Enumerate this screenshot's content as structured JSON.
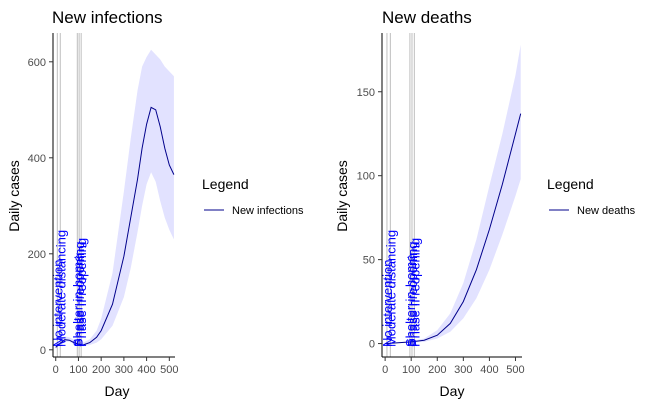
{
  "colors": {
    "line": "#00008b",
    "band": "#e2e2ff",
    "vline": "#bebebe",
    "annotation": "#0000ff",
    "axis": "#000000"
  },
  "chart_data": [
    {
      "type": "line",
      "title": "New infections",
      "xlabel": "Day",
      "ylabel": "Daily cases",
      "xlim": [
        -12,
        525
      ],
      "ylim": [
        -15,
        660
      ],
      "xticks": [
        0,
        100,
        200,
        300,
        400,
        500
      ],
      "yticks": [
        0,
        200,
        400,
        600
      ],
      "legend": {
        "title": "Legend",
        "entries": [
          "New infections"
        ],
        "position": "right"
      },
      "interventions": [
        {
          "day": 7,
          "label": "No intervention"
        },
        {
          "day": 20,
          "label": "Moderate distancing"
        },
        {
          "day": 95,
          "label": "Shelter-in-home"
        },
        {
          "day": 103,
          "label": "Phase I reopening"
        },
        {
          "day": 112,
          "label": "Phase II reopening"
        }
      ],
      "series": [
        {
          "name": "New infections",
          "x": [
            0,
            20,
            40,
            60,
            80,
            100,
            120,
            150,
            180,
            200,
            250,
            300,
            330,
            360,
            380,
            400,
            420,
            440,
            460,
            480,
            500,
            520
          ],
          "y": [
            5,
            14,
            21,
            20,
            15,
            12,
            10,
            15,
            26,
            40,
            95,
            195,
            275,
            355,
            420,
            470,
            505,
            500,
            465,
            420,
            385,
            365
          ],
          "lower": [
            2,
            10,
            17,
            17,
            12,
            9,
            7,
            10,
            15,
            22,
            50,
            110,
            170,
            245,
            300,
            345,
            370,
            350,
            310,
            275,
            250,
            230
          ],
          "upper": [
            8,
            20,
            28,
            26,
            21,
            17,
            15,
            22,
            40,
            65,
            160,
            330,
            440,
            540,
            590,
            610,
            625,
            615,
            605,
            590,
            580,
            570
          ]
        }
      ]
    },
    {
      "type": "line",
      "title": "New deaths",
      "xlabel": "Day",
      "ylabel": "Daily cases",
      "xlim": [
        -12,
        525
      ],
      "ylim": [
        -8,
        185
      ],
      "xticks": [
        0,
        100,
        200,
        300,
        400,
        500
      ],
      "yticks": [
        0,
        50,
        100,
        150
      ],
      "legend": {
        "title": "Legend",
        "entries": [
          "New deaths"
        ],
        "position": "right"
      },
      "interventions": [
        {
          "day": 7,
          "label": "No intervention"
        },
        {
          "day": 20,
          "label": "Moderate distancing"
        },
        {
          "day": 95,
          "label": "Shelter-in-home"
        },
        {
          "day": 103,
          "label": "Phase I reopening"
        },
        {
          "day": 112,
          "label": "Phase II reopening"
        }
      ],
      "series": [
        {
          "name": "New deaths",
          "x": [
            0,
            50,
            100,
            150,
            200,
            250,
            300,
            350,
            400,
            450,
            500,
            520
          ],
          "y": [
            0,
            0.5,
            1,
            2,
            5,
            12,
            25,
            44,
            68,
            95,
            125,
            137
          ],
          "lower": [
            0,
            0.3,
            0.6,
            1,
            3,
            7,
            15,
            27,
            44,
            65,
            88,
            98
          ],
          "upper": [
            0,
            0.8,
            1.5,
            3,
            8,
            18,
            36,
            62,
            94,
            125,
            160,
            178
          ]
        }
      ]
    }
  ]
}
